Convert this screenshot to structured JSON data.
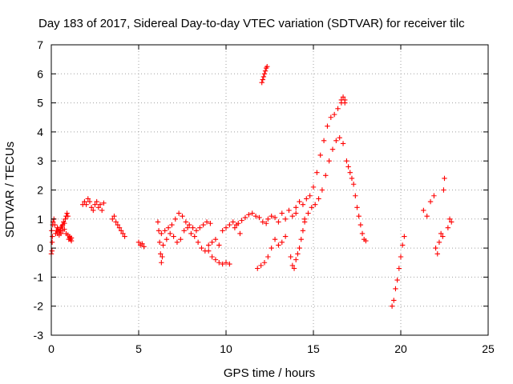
{
  "chart_data": {
    "type": "scatter",
    "title": "Day 183 of 2017, Sidereal Day-to-day VTEC variation (SDTVAR) for receiver tilc",
    "xlabel": "GPS time / hours",
    "ylabel": "SDTVAR / TECUs",
    "xlim": [
      0,
      25
    ],
    "ylim": [
      -3,
      7
    ],
    "xticks": [
      0,
      5,
      10,
      15,
      20,
      25
    ],
    "yticks": [
      -3,
      -2,
      -1,
      0,
      1,
      2,
      3,
      4,
      5,
      6,
      7
    ],
    "grid": true,
    "marker": "+",
    "color": "#ff0000",
    "series": [
      {
        "name": "SDTVAR",
        "x": [
          0.0,
          0.05,
          0.1,
          0.15,
          0.2,
          0.25,
          0.3,
          0.35,
          0.4,
          0.45,
          0.5,
          0.55,
          0.6,
          0.65,
          0.7,
          0.75,
          0.8,
          0.85,
          0.9,
          0.95,
          1.0,
          1.05,
          1.1,
          1.15,
          0.35,
          0.45,
          0.55,
          0.65,
          0.75,
          0.85,
          0.95,
          1.05,
          1.15,
          0.02,
          0.04,
          0.06,
          0.08,
          1.8,
          1.9,
          2.0,
          2.1,
          2.2,
          2.3,
          2.4,
          2.5,
          2.6,
          2.7,
          2.8,
          2.9,
          3.0,
          3.5,
          3.6,
          3.7,
          3.8,
          3.9,
          4.0,
          4.1,
          4.2,
          5.0,
          5.1,
          5.2,
          5.3,
          6.1,
          6.15,
          6.2,
          6.25,
          6.3,
          6.35,
          6.4,
          6.3,
          6.5,
          6.7,
          6.9,
          7.1,
          7.3,
          7.5,
          7.7,
          7.9,
          8.1,
          8.3,
          8.5,
          8.7,
          8.9,
          9.1,
          6.6,
          6.8,
          7.0,
          7.2,
          7.4,
          7.6,
          7.8,
          8.0,
          8.2,
          8.4,
          8.6,
          8.8,
          9.0,
          9.2,
          9.4,
          9.6,
          9.0,
          9.2,
          9.4,
          9.6,
          9.8,
          10.0,
          10.2,
          9.8,
          10.0,
          10.2,
          10.4,
          10.6,
          10.8,
          10.5,
          10.7,
          10.9,
          11.1,
          11.3,
          11.5,
          11.7,
          11.9,
          12.1,
          12.3,
          12.05,
          12.1,
          12.15,
          12.2,
          12.25,
          12.3,
          12.35,
          12.4,
          12.6,
          12.8,
          13.0,
          13.2,
          13.4,
          13.6,
          13.8,
          14.0,
          11.8,
          12.0,
          12.2,
          12.4,
          12.6,
          12.8,
          13.0,
          13.2,
          13.4,
          13.7,
          13.8,
          13.9,
          14.0,
          14.1,
          14.2,
          14.3,
          14.4,
          14.5,
          14.0,
          14.2,
          14.4,
          14.6,
          14.8,
          15.0,
          15.2,
          15.4,
          15.6,
          15.8,
          16.0,
          16.2,
          16.4,
          16.6,
          16.8,
          14.5,
          14.7,
          14.9,
          15.1,
          15.3,
          15.5,
          15.7,
          15.9,
          16.1,
          16.3,
          16.5,
          16.7,
          16.9,
          17.0,
          17.1,
          17.2,
          17.3,
          17.4,
          17.5,
          17.6,
          17.7,
          17.8,
          17.9,
          18.0,
          16.6,
          16.7,
          16.8,
          19.5,
          19.6,
          19.7,
          19.8,
          19.9,
          20.0,
          20.1,
          20.2,
          21.3,
          21.5,
          21.7,
          21.9,
          22.0,
          22.1,
          22.2,
          22.3,
          22.4,
          22.5,
          22.45,
          22.7,
          22.8,
          22.9
        ],
        "y": [
          -0.2,
          0.2,
          0.9,
          1.0,
          0.8,
          0.5,
          0.6,
          0.7,
          0.65,
          0.55,
          0.6,
          0.7,
          0.75,
          0.8,
          0.9,
          0.85,
          1.0,
          1.1,
          1.2,
          1.1,
          0.3,
          0.35,
          0.3,
          0.25,
          0.5,
          0.45,
          0.5,
          0.6,
          0.65,
          0.5,
          0.45,
          0.4,
          0.35,
          0.6,
          -0.1,
          0.4,
          0.8,
          1.5,
          1.6,
          1.5,
          1.7,
          1.6,
          1.4,
          1.3,
          1.5,
          1.6,
          1.4,
          1.5,
          1.3,
          1.55,
          1.0,
          1.1,
          0.9,
          0.8,
          0.7,
          0.6,
          0.5,
          0.4,
          0.2,
          0.1,
          0.15,
          0.05,
          0.9,
          0.6,
          0.2,
          -0.2,
          -0.5,
          -0.3,
          0.1,
          0.5,
          0.6,
          0.7,
          0.8,
          1.0,
          1.2,
          1.1,
          0.9,
          0.8,
          0.7,
          0.6,
          0.7,
          0.8,
          0.9,
          0.85,
          0.3,
          0.5,
          0.4,
          0.2,
          0.3,
          0.6,
          0.7,
          0.5,
          0.4,
          0.2,
          0.0,
          -0.1,
          0.1,
          0.2,
          0.3,
          0.1,
          -0.1,
          -0.3,
          -0.4,
          -0.5,
          -0.55,
          -0.5,
          -0.55,
          0.6,
          0.7,
          0.8,
          0.9,
          0.8,
          0.5,
          0.7,
          0.85,
          0.95,
          1.05,
          1.15,
          1.2,
          1.1,
          1.05,
          0.9,
          0.85,
          5.7,
          5.8,
          5.9,
          6.0,
          6.1,
          6.2,
          6.25,
          1.0,
          1.1,
          1.05,
          0.9,
          1.2,
          1.0,
          1.3,
          1.1,
          1.2,
          -0.7,
          -0.6,
          -0.5,
          -0.3,
          0.0,
          0.3,
          0.1,
          0.2,
          0.4,
          -0.3,
          -0.6,
          -0.7,
          -0.4,
          -0.2,
          0.0,
          0.3,
          0.6,
          0.9,
          1.4,
          1.6,
          1.5,
          1.7,
          1.8,
          2.1,
          2.6,
          3.2,
          3.7,
          4.2,
          4.5,
          4.6,
          4.8,
          5.0,
          5.1,
          1.0,
          1.2,
          1.4,
          1.5,
          1.7,
          2.0,
          2.5,
          3.0,
          3.4,
          3.7,
          3.8,
          3.6,
          3.0,
          2.8,
          2.6,
          2.4,
          2.2,
          1.8,
          1.4,
          1.1,
          0.8,
          0.5,
          0.3,
          0.25,
          5.1,
          5.2,
          5.0,
          -2.0,
          -1.8,
          -1.4,
          -1.1,
          -0.7,
          -0.3,
          0.1,
          0.4,
          1.3,
          1.1,
          1.6,
          1.8,
          0.0,
          -0.2,
          0.2,
          0.5,
          0.4,
          2.4,
          2.0,
          0.7,
          1.0,
          0.9
        ]
      }
    ]
  }
}
